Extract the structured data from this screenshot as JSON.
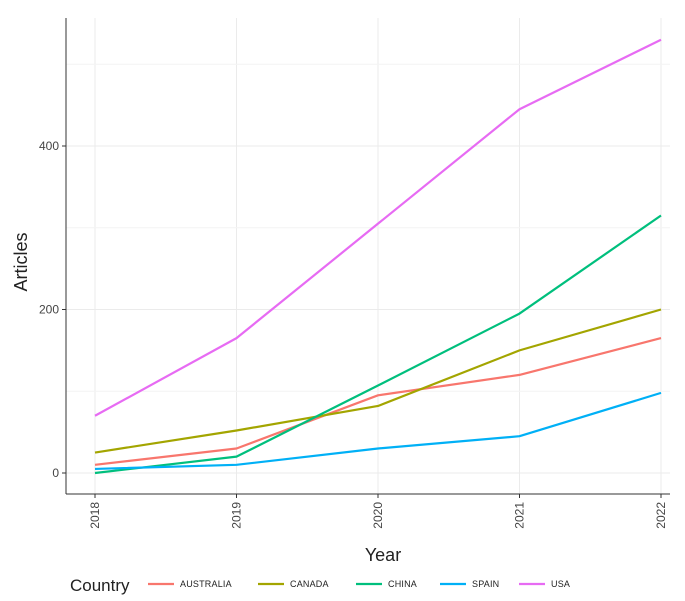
{
  "chart_data": {
    "type": "line",
    "x": [
      2018,
      2019,
      2020,
      2021,
      2022
    ],
    "xlabel": "Year",
    "ylabel": "Articles",
    "xlim": [
      2018,
      2022
    ],
    "ylim": [
      -25,
      530
    ],
    "x_ticks": [
      "2018",
      "2019",
      "2020",
      "2021",
      "2022"
    ],
    "y_ticks": [
      0,
      200,
      400
    ],
    "y_tick_labels": [
      "0",
      "200",
      "400"
    ],
    "grid": true,
    "legend_title": "Country",
    "legend_position": "bottom",
    "series": [
      {
        "name": "AUSTRALIA",
        "color": "#F8766D",
        "values": [
          10,
          30,
          95,
          120,
          165
        ]
      },
      {
        "name": "CANADA",
        "color": "#A3A500",
        "values": [
          25,
          52,
          82,
          150,
          200
        ]
      },
      {
        "name": "CHINA",
        "color": "#00BF7D",
        "values": [
          0,
          20,
          107,
          195,
          315
        ]
      },
      {
        "name": "SPAIN",
        "color": "#00B0F6",
        "values": [
          5,
          10,
          30,
          45,
          98
        ]
      },
      {
        "name": "USA",
        "color": "#E76BF3",
        "values": [
          70,
          165,
          305,
          445,
          530
        ]
      }
    ]
  }
}
